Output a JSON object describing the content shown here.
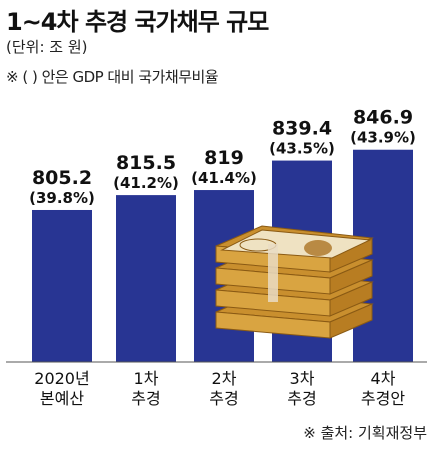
{
  "title": "1~4차 추경 국가채무 규모",
  "unit_label": "(단위: 조 원)",
  "note": "※ (   ) 안은 GDP 대비 국가채무비율",
  "source": "※ 출처: 기획재정부",
  "colors": {
    "bar": "#283593",
    "money": "#d9a441"
  },
  "chart_data": {
    "type": "bar",
    "categories": [
      [
        "2020년",
        "본예산"
      ],
      [
        "1차",
        "추경"
      ],
      [
        "2차",
        "추경"
      ],
      [
        "3차",
        "추경"
      ],
      [
        "4차",
        "추경안"
      ]
    ],
    "values": [
      805.2,
      815.5,
      819,
      839.4,
      846.9
    ],
    "value_labels": [
      "805.2",
      "815.5",
      "819",
      "839.4",
      "846.9"
    ],
    "ratio_labels": [
      "(39.8%)",
      "(41.2%)",
      "(41.4%)",
      "(43.5%)",
      "(43.9%)"
    ],
    "title": "1~4차 추경 국가채무 규모",
    "ylabel": "",
    "ylim": [
      0,
      900
    ],
    "grid": false,
    "legend": "none"
  }
}
